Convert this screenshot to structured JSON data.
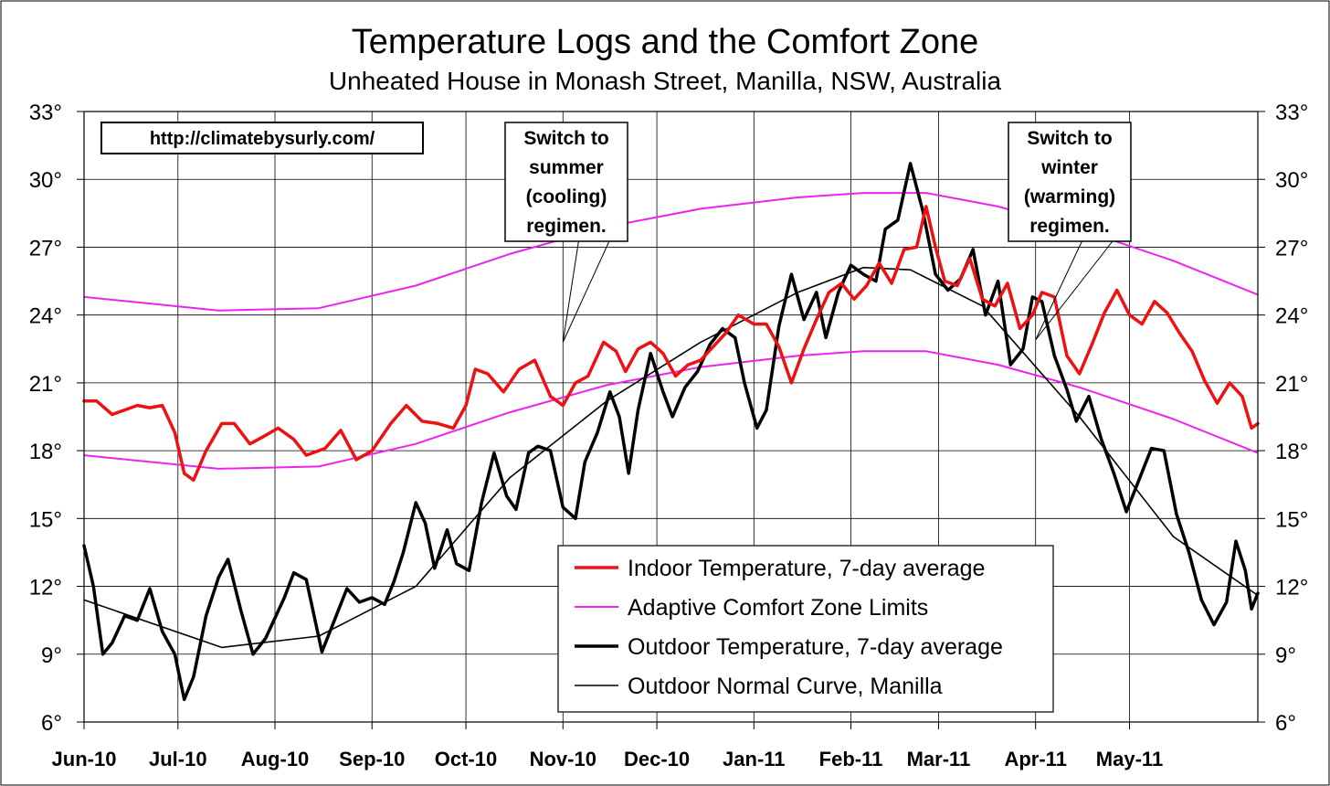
{
  "chart_data": {
    "type": "line",
    "title": "Temperature Logs and the Comfort Zone",
    "subtitle": "Unheated House in Monash Street, Manilla, NSW, Australia",
    "url_label": "http://climatebysurly.com/",
    "x_categories": [
      "Jun-10",
      "Jul-10",
      "Aug-10",
      "Sep-10",
      "Oct-10",
      "Nov-10",
      "Dec-10",
      "Jan-11",
      "Feb-11",
      "Mar-11",
      "Apr-11",
      "May-11"
    ],
    "x_range": [
      "2010-06-01",
      "2011-05-31"
    ],
    "y_ticks": [
      "6°",
      "9°",
      "12°",
      "15°",
      "18°",
      "21°",
      "24°",
      "27°",
      "30°",
      "33°"
    ],
    "y_left_label": "",
    "y_right_label": "",
    "ylim": [
      6,
      33
    ],
    "grid": true,
    "legend_placement": "lower-center-right",
    "annotations": [
      {
        "id": "summer",
        "lines": [
          "Switch to",
          "summer",
          "(cooling)",
          "regimen."
        ],
        "points_to": {
          "date": "2010-11-01",
          "y": 22.8
        }
      },
      {
        "id": "winter",
        "lines": [
          "Switch to",
          "winter",
          "(warming)",
          "regimen."
        ],
        "points_to": {
          "date": "2011-04-01",
          "y": 22.9
        }
      }
    ],
    "series": [
      {
        "name": "Indoor Temperature, 7-day average",
        "color": "#ee1111",
        "width": 3.5,
        "style": "thick",
        "points": [
          [
            "2010-06-01",
            20.2
          ],
          [
            "2010-06-05",
            20.2
          ],
          [
            "2010-06-10",
            19.6
          ],
          [
            "2010-06-14",
            19.8
          ],
          [
            "2010-06-18",
            20.0
          ],
          [
            "2010-06-22",
            19.9
          ],
          [
            "2010-06-26",
            20.0
          ],
          [
            "2010-06-30",
            18.8
          ],
          [
            "2010-07-03",
            17.0
          ],
          [
            "2010-07-06",
            16.7
          ],
          [
            "2010-07-10",
            18.0
          ],
          [
            "2010-07-15",
            19.2
          ],
          [
            "2010-07-19",
            19.2
          ],
          [
            "2010-07-24",
            18.3
          ],
          [
            "2010-07-28",
            18.6
          ],
          [
            "2010-08-02",
            19.0
          ],
          [
            "2010-08-07",
            18.5
          ],
          [
            "2010-08-11",
            17.8
          ],
          [
            "2010-08-17",
            18.1
          ],
          [
            "2010-08-22",
            18.9
          ],
          [
            "2010-08-27",
            17.6
          ],
          [
            "2010-09-01",
            18.0
          ],
          [
            "2010-09-07",
            19.2
          ],
          [
            "2010-09-12",
            20.0
          ],
          [
            "2010-09-17",
            19.3
          ],
          [
            "2010-09-22",
            19.2
          ],
          [
            "2010-09-27",
            19.0
          ],
          [
            "2010-10-01",
            20.0
          ],
          [
            "2010-10-04",
            21.6
          ],
          [
            "2010-10-08",
            21.4
          ],
          [
            "2010-10-13",
            20.6
          ],
          [
            "2010-10-18",
            21.6
          ],
          [
            "2010-10-23",
            22.0
          ],
          [
            "2010-10-28",
            20.4
          ],
          [
            "2010-11-01",
            20.0
          ],
          [
            "2010-11-05",
            21.0
          ],
          [
            "2010-11-09",
            21.3
          ],
          [
            "2010-11-14",
            22.8
          ],
          [
            "2010-11-18",
            22.4
          ],
          [
            "2010-11-21",
            21.5
          ],
          [
            "2010-11-25",
            22.5
          ],
          [
            "2010-11-29",
            22.8
          ],
          [
            "2010-12-03",
            22.3
          ],
          [
            "2010-12-07",
            21.3
          ],
          [
            "2010-12-11",
            21.8
          ],
          [
            "2010-12-15",
            22.0
          ],
          [
            "2010-12-19",
            22.6
          ],
          [
            "2010-12-23",
            23.2
          ],
          [
            "2010-12-27",
            24.0
          ],
          [
            "2011-01-01",
            23.6
          ],
          [
            "2011-01-05",
            23.6
          ],
          [
            "2011-01-09",
            22.6
          ],
          [
            "2011-01-13",
            21.0
          ],
          [
            "2011-01-17",
            22.5
          ],
          [
            "2011-01-21",
            23.8
          ],
          [
            "2011-01-25",
            25.0
          ],
          [
            "2011-01-29",
            25.4
          ],
          [
            "2011-02-02",
            24.7
          ],
          [
            "2011-02-06",
            25.3
          ],
          [
            "2011-02-10",
            26.3
          ],
          [
            "2011-02-14",
            25.4
          ],
          [
            "2011-02-18",
            26.9
          ],
          [
            "2011-02-22",
            27.0
          ],
          [
            "2011-02-25",
            28.8
          ],
          [
            "2011-02-28",
            27.0
          ],
          [
            "2011-03-03",
            25.5
          ],
          [
            "2011-03-07",
            25.3
          ],
          [
            "2011-03-11",
            26.5
          ],
          [
            "2011-03-15",
            24.7
          ],
          [
            "2011-03-19",
            24.4
          ],
          [
            "2011-03-23",
            25.4
          ],
          [
            "2011-03-27",
            23.4
          ],
          [
            "2011-03-31",
            24.0
          ],
          [
            "2011-04-03",
            25.0
          ],
          [
            "2011-04-07",
            24.8
          ],
          [
            "2011-04-11",
            22.2
          ],
          [
            "2011-04-15",
            21.4
          ],
          [
            "2011-04-19",
            22.7
          ],
          [
            "2011-04-23",
            24.1
          ],
          [
            "2011-04-27",
            25.1
          ],
          [
            "2011-05-01",
            24.0
          ],
          [
            "2011-05-05",
            23.6
          ],
          [
            "2011-05-09",
            24.6
          ],
          [
            "2011-05-13",
            24.1
          ],
          [
            "2011-05-17",
            23.2
          ],
          [
            "2011-05-21",
            22.4
          ],
          [
            "2011-05-25",
            21.1
          ],
          [
            "2011-05-29",
            20.1
          ],
          [
            "2011-06-02",
            21.0
          ],
          [
            "2011-06-06",
            20.4
          ],
          [
            "2011-06-09",
            19.0
          ],
          [
            "2011-06-11",
            19.2
          ]
        ]
      },
      {
        "name": "Adaptive Comfort Zone Limits",
        "color": "#ee22ee",
        "width": 2,
        "style": "thin",
        "curves": [
          {
            "role": "upper",
            "points": [
              [
                "2010-06-01",
                24.8
              ],
              [
                "2010-07-14",
                24.2
              ],
              [
                "2010-08-15",
                24.3
              ],
              [
                "2010-09-15",
                25.3
              ],
              [
                "2010-10-15",
                26.7
              ],
              [
                "2010-11-15",
                27.9
              ],
              [
                "2010-12-15",
                28.7
              ],
              [
                "2011-01-15",
                29.2
              ],
              [
                "2011-02-05",
                29.4
              ],
              [
                "2011-02-25",
                29.4
              ],
              [
                "2011-03-20",
                28.8
              ],
              [
                "2011-04-15",
                27.8
              ],
              [
                "2011-05-15",
                26.4
              ],
              [
                "2011-06-11",
                24.9
              ]
            ]
          },
          {
            "role": "lower",
            "points": [
              [
                "2010-06-01",
                17.8
              ],
              [
                "2010-07-14",
                17.2
              ],
              [
                "2010-08-15",
                17.3
              ],
              [
                "2010-09-15",
                18.3
              ],
              [
                "2010-10-15",
                19.7
              ],
              [
                "2010-11-15",
                20.9
              ],
              [
                "2010-12-15",
                21.7
              ],
              [
                "2011-01-15",
                22.2
              ],
              [
                "2011-02-05",
                22.4
              ],
              [
                "2011-02-25",
                22.4
              ],
              [
                "2011-03-20",
                21.8
              ],
              [
                "2011-04-15",
                20.8
              ],
              [
                "2011-05-15",
                19.4
              ],
              [
                "2011-06-11",
                17.9
              ]
            ]
          }
        ]
      },
      {
        "name": "Outdoor Temperature, 7-day average",
        "color": "#000000",
        "width": 3.5,
        "style": "thick",
        "points": [
          [
            "2010-06-01",
            13.8
          ],
          [
            "2010-06-04",
            12.0
          ],
          [
            "2010-06-07",
            9.0
          ],
          [
            "2010-06-10",
            9.5
          ],
          [
            "2010-06-14",
            10.7
          ],
          [
            "2010-06-18",
            10.5
          ],
          [
            "2010-06-22",
            11.9
          ],
          [
            "2010-06-26",
            10.0
          ],
          [
            "2010-06-30",
            9.0
          ],
          [
            "2010-07-03",
            7.0
          ],
          [
            "2010-07-06",
            8.0
          ],
          [
            "2010-07-10",
            10.7
          ],
          [
            "2010-07-14",
            12.4
          ],
          [
            "2010-07-17",
            13.2
          ],
          [
            "2010-07-21",
            11.0
          ],
          [
            "2010-07-25",
            9.0
          ],
          [
            "2010-07-29",
            9.7
          ],
          [
            "2010-08-04",
            11.5
          ],
          [
            "2010-08-07",
            12.6
          ],
          [
            "2010-08-11",
            12.3
          ],
          [
            "2010-08-16",
            9.1
          ],
          [
            "2010-08-20",
            10.5
          ],
          [
            "2010-08-24",
            11.9
          ],
          [
            "2010-08-28",
            11.3
          ],
          [
            "2010-09-01",
            11.5
          ],
          [
            "2010-09-05",
            11.2
          ],
          [
            "2010-09-08",
            12.2
          ],
          [
            "2010-09-11",
            13.5
          ],
          [
            "2010-09-15",
            15.7
          ],
          [
            "2010-09-18",
            14.8
          ],
          [
            "2010-09-21",
            12.8
          ],
          [
            "2010-09-25",
            14.5
          ],
          [
            "2010-09-28",
            13.0
          ],
          [
            "2010-10-02",
            12.7
          ],
          [
            "2010-10-06",
            15.7
          ],
          [
            "2010-10-10",
            17.9
          ],
          [
            "2010-10-14",
            16.0
          ],
          [
            "2010-10-17",
            15.4
          ],
          [
            "2010-10-21",
            17.9
          ],
          [
            "2010-10-24",
            18.2
          ],
          [
            "2010-10-28",
            18.0
          ],
          [
            "2010-11-01",
            15.5
          ],
          [
            "2010-11-05",
            15.0
          ],
          [
            "2010-11-08",
            17.5
          ],
          [
            "2010-11-12",
            18.8
          ],
          [
            "2010-11-16",
            20.6
          ],
          [
            "2010-11-19",
            19.5
          ],
          [
            "2010-11-22",
            17.0
          ],
          [
            "2010-11-25",
            19.8
          ],
          [
            "2010-11-29",
            22.3
          ],
          [
            "2010-12-03",
            20.6
          ],
          [
            "2010-12-06",
            19.5
          ],
          [
            "2010-12-10",
            20.8
          ],
          [
            "2010-12-14",
            21.5
          ],
          [
            "2010-12-18",
            22.7
          ],
          [
            "2010-12-22",
            23.4
          ],
          [
            "2010-12-26",
            23.0
          ],
          [
            "2010-12-29",
            21.0
          ],
          [
            "2011-01-02",
            19.0
          ],
          [
            "2011-01-05",
            19.8
          ],
          [
            "2011-01-09",
            23.5
          ],
          [
            "2011-01-13",
            25.8
          ],
          [
            "2011-01-17",
            23.8
          ],
          [
            "2011-01-21",
            25.0
          ],
          [
            "2011-01-24",
            23.0
          ],
          [
            "2011-01-28",
            25.0
          ],
          [
            "2011-02-01",
            26.2
          ],
          [
            "2011-02-05",
            25.8
          ],
          [
            "2011-02-09",
            25.5
          ],
          [
            "2011-02-12",
            27.8
          ],
          [
            "2011-02-16",
            28.2
          ],
          [
            "2011-02-20",
            30.7
          ],
          [
            "2011-02-24",
            28.6
          ],
          [
            "2011-02-28",
            25.8
          ],
          [
            "2011-03-04",
            25.1
          ],
          [
            "2011-03-08",
            25.6
          ],
          [
            "2011-03-12",
            26.9
          ],
          [
            "2011-03-16",
            24.0
          ],
          [
            "2011-03-20",
            25.5
          ],
          [
            "2011-03-24",
            21.8
          ],
          [
            "2011-03-28",
            22.5
          ],
          [
            "2011-03-31",
            24.8
          ],
          [
            "2011-04-03",
            24.6
          ],
          [
            "2011-04-07",
            22.2
          ],
          [
            "2011-04-11",
            20.7
          ],
          [
            "2011-04-14",
            19.3
          ],
          [
            "2011-04-18",
            20.4
          ],
          [
            "2011-04-22",
            18.5
          ],
          [
            "2011-04-26",
            17.0
          ],
          [
            "2011-04-30",
            15.3
          ],
          [
            "2011-05-04",
            16.7
          ],
          [
            "2011-05-08",
            18.1
          ],
          [
            "2011-05-12",
            18.0
          ],
          [
            "2011-05-16",
            15.2
          ],
          [
            "2011-05-20",
            13.5
          ],
          [
            "2011-05-24",
            11.4
          ],
          [
            "2011-05-28",
            10.3
          ],
          [
            "2011-06-01",
            11.3
          ],
          [
            "2011-06-04",
            14.0
          ],
          [
            "2011-06-07",
            12.7
          ],
          [
            "2011-06-09",
            11.0
          ],
          [
            "2011-06-11",
            11.7
          ]
        ]
      },
      {
        "name": "Outdoor Normal Curve, Manilla",
        "color": "#000000",
        "width": 1.6,
        "style": "thin",
        "points": [
          [
            "2010-06-01",
            11.4
          ],
          [
            "2010-07-15",
            9.3
          ],
          [
            "2010-08-15",
            9.8
          ],
          [
            "2010-09-15",
            12.0
          ],
          [
            "2010-10-15",
            16.8
          ],
          [
            "2010-11-15",
            20.2
          ],
          [
            "2010-12-15",
            22.8
          ],
          [
            "2011-01-15",
            25.0
          ],
          [
            "2011-02-05",
            26.1
          ],
          [
            "2011-02-20",
            26.0
          ],
          [
            "2011-03-15",
            24.4
          ],
          [
            "2011-04-15",
            19.5
          ],
          [
            "2011-05-15",
            14.2
          ],
          [
            "2011-06-11",
            11.6
          ]
        ]
      }
    ]
  }
}
